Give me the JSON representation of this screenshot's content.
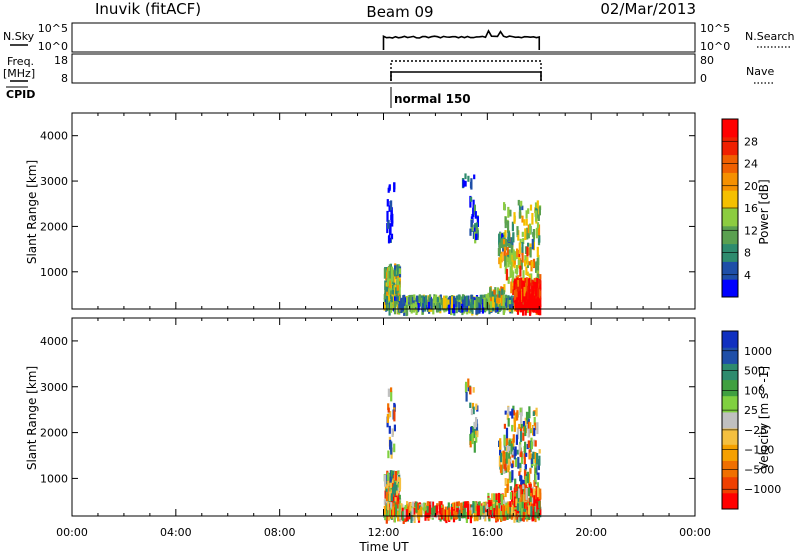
{
  "header": {
    "station": "Inuvik (fitACF)",
    "beam": "Beam 09",
    "date": "02/Mar/2013"
  },
  "param_panels": {
    "nsky": {
      "label": "N.Sky",
      "ticks": [
        "10^5",
        "10^0"
      ]
    },
    "nsearch": {
      "label": "N.Search",
      "ticks": [
        "10^5",
        "10^0"
      ]
    },
    "freq": {
      "label": "Freq.",
      "unit": "[MHz]",
      "ticks": [
        "18",
        "8"
      ]
    },
    "nave": {
      "label": "Nave",
      "ticks": [
        "80",
        "0"
      ]
    },
    "cpid": {
      "label": "CPID",
      "program": "normal 150"
    }
  },
  "colors": {
    "power": [
      "#0000ff",
      "#1f4fa8",
      "#2e8b6e",
      "#5aa050",
      "#8ccc40",
      "#f5c000",
      "#f59000",
      "#f06000",
      "#f02000",
      "#ff0000"
    ],
    "velocity": [
      "#ff0000",
      "#f04000",
      "#f07000",
      "#f5a000",
      "#f5c040",
      "#c0c0c0",
      "#80d040",
      "#40a040",
      "#2e8b6e",
      "#1f4fa8",
      "#1030c0"
    ]
  },
  "chart_data": [
    {
      "type": "heatmap",
      "name": "Power",
      "ylabel": "Slant Range [km]",
      "ylim": [
        180,
        4500
      ],
      "yticks": [
        1000,
        2000,
        3000,
        4000
      ],
      "xlim": [
        0,
        24
      ],
      "colorbar": {
        "label": "Power [dB]",
        "range": [
          0,
          32
        ],
        "ticks": [
          4,
          8,
          12,
          16,
          20,
          24,
          28
        ]
      },
      "data_window_hours": [
        12,
        18
      ]
    },
    {
      "type": "heatmap",
      "name": "Velocity",
      "ylabel": "Slant Range [km]",
      "ylim": [
        180,
        4500
      ],
      "yticks": [
        1000,
        2000,
        3000,
        4000
      ],
      "xlim": [
        0,
        24
      ],
      "xlabel": "Time UT",
      "xticks": [
        "00:00",
        "04:00",
        "08:00",
        "12:00",
        "16:00",
        "20:00",
        "00:00"
      ],
      "colorbar": {
        "label": "Velocity [m s^-1]",
        "ticks": [
          "1000",
          "500",
          "100",
          "25",
          "−25",
          "−100",
          "−500",
          "−1000"
        ]
      },
      "data_window_hours": [
        12,
        18
      ]
    }
  ]
}
